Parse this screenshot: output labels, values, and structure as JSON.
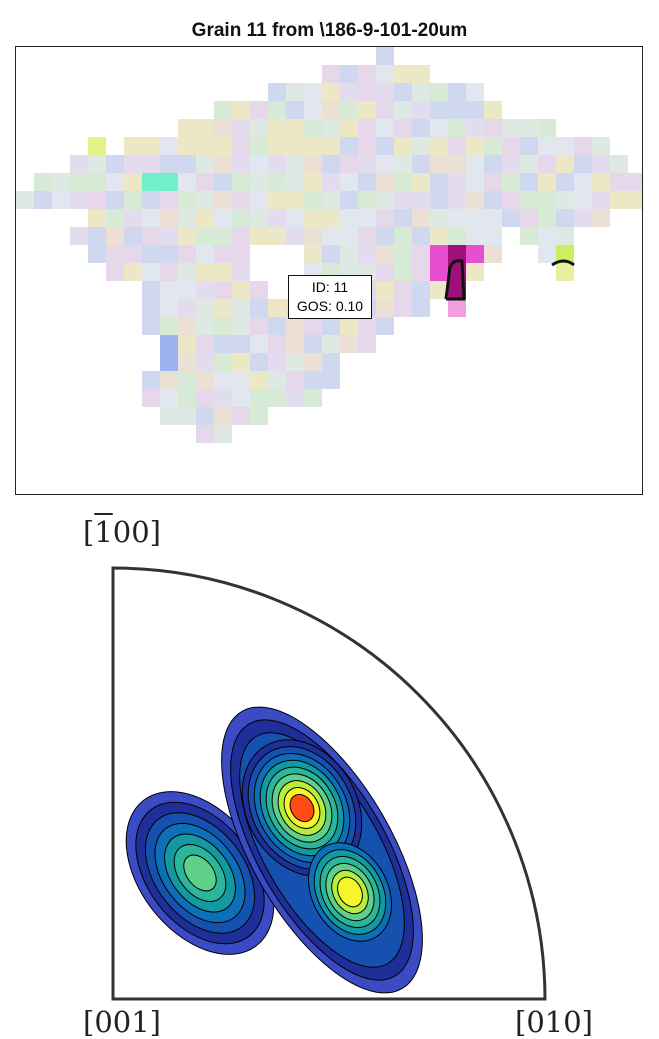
{
  "title": "Grain 11 from \\186-9-101-20um",
  "grain_info": {
    "id_text": "ID: 11",
    "gos_text": "GOS: 0.10"
  },
  "pole_figure": {
    "top_label": "[̄100]",
    "top_label_parts": {
      "bracket_open": "[",
      "barred": "1",
      "rest": "00]"
    },
    "bottom_left_label": "[001]",
    "bottom_right_label": "[010]"
  },
  "chart_data": [
    {
      "type": "heatmap",
      "description_kind": "grain orientation map",
      "title": "Grain 11 from \\186-9-101-20um",
      "annotation": [
        "ID: 11",
        "GOS: 0.10"
      ],
      "colors": {
        "pale_pink": "#e6d8ea",
        "pale_green": "#d6ead6",
        "pale_yellow": "#ece8c6",
        "pale_blue": "#cfd8ee",
        "magenta": "#e84fd0",
        "dark_magenta": "#a0107a",
        "lime": "#c8f060",
        "cyan": "#70f0c8"
      }
    },
    {
      "type": "heatmap",
      "description_kind": "inverse pole figure density contours",
      "axis_labels": [
        "[̄100]",
        "[001]",
        "[010]"
      ],
      "peaks": [
        {
          "name": "main",
          "intensity": "high"
        },
        {
          "name": "secondary",
          "intensity": "medium"
        },
        {
          "name": "left",
          "intensity": "medium"
        }
      ],
      "contour_colors": [
        "#3b4bc4",
        "#1f2f9a",
        "#1552b0",
        "#0d6fb8",
        "#129aa0",
        "#2bb59a",
        "#5fd08a",
        "#b6ee3e",
        "#f5f52a",
        "#ff4b14"
      ]
    }
  ]
}
